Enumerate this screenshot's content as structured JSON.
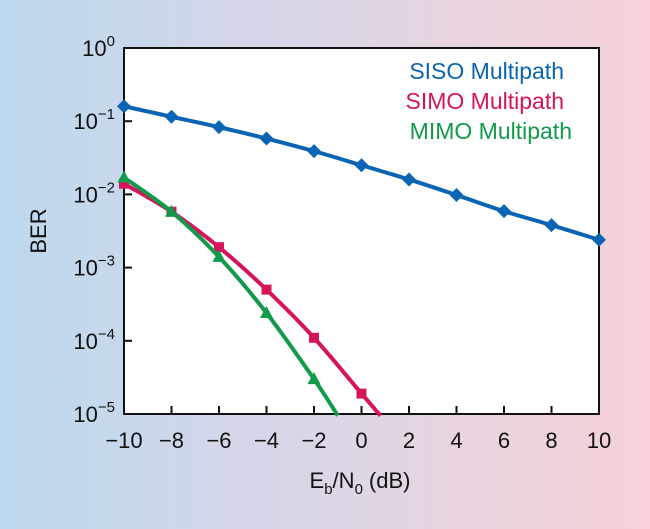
{
  "chart_data": {
    "type": "line",
    "xlabel": "E_b/N_0 (dB)",
    "xlabel_parts": {
      "e": "E",
      "b": "b",
      "slash": "/",
      "n": "N",
      "zero": "0",
      "unit": "(dB)"
    },
    "ylabel": "BER",
    "x_scale": "linear",
    "y_scale": "log",
    "xlim": [
      -10,
      10
    ],
    "ylim": [
      1e-05,
      1
    ],
    "x_ticks": [
      -10,
      -8,
      -6,
      -4,
      -2,
      0,
      2,
      4,
      6,
      8,
      10
    ],
    "x_tick_labels": [
      "−10",
      "−8",
      "−6",
      "−4",
      "−2",
      "0",
      "2",
      "4",
      "6",
      "8",
      "10"
    ],
    "y_ticks": [
      1,
      0.1,
      0.01,
      0.001,
      0.0001,
      1e-05
    ],
    "y_tick_labels": [
      {
        "base": "10",
        "exp": "0"
      },
      {
        "base": "10",
        "exp": "−1"
      },
      {
        "base": "10",
        "exp": "−2"
      },
      {
        "base": "10",
        "exp": "−3"
      },
      {
        "base": "10",
        "exp": "−4"
      },
      {
        "base": "10",
        "exp": "−5"
      }
    ],
    "grid": false,
    "legend_position": "top-right",
    "series": [
      {
        "name": "SISO Multipath",
        "color": "#0a64b4",
        "marker": "diamond",
        "points": [
          [
            -10,
            0.16
          ],
          [
            -8,
            0.115
          ],
          [
            -6,
            0.083
          ],
          [
            -4,
            0.058
          ],
          [
            -2,
            0.039
          ],
          [
            0,
            0.025
          ],
          [
            2,
            0.016
          ],
          [
            4,
            0.0098
          ],
          [
            6,
            0.0059
          ],
          [
            8,
            0.0038
          ],
          [
            10,
            0.0024
          ]
        ],
        "curve_extra": []
      },
      {
        "name": "SIMO Multipath",
        "color": "#d6145a",
        "marker": "square",
        "points": [
          [
            -10,
            0.014
          ],
          [
            -8,
            0.0058
          ],
          [
            -6,
            0.0019
          ],
          [
            -4,
            0.0005
          ],
          [
            -2,
            0.00011
          ],
          [
            0,
            1.9e-05
          ]
        ],
        "curve_extra": [
          [
            0.8,
            9.5e-06
          ]
        ]
      },
      {
        "name": "MIMO Multipath",
        "color": "#119a4a",
        "marker": "triangle",
        "points": [
          [
            -10,
            0.017
          ],
          [
            -8,
            0.0058
          ],
          [
            -6,
            0.0014
          ],
          [
            -4,
            0.00024
          ],
          [
            -2,
            3e-05
          ]
        ],
        "curve_extra": [
          [
            -1.0,
            9.5e-06
          ]
        ]
      }
    ]
  }
}
